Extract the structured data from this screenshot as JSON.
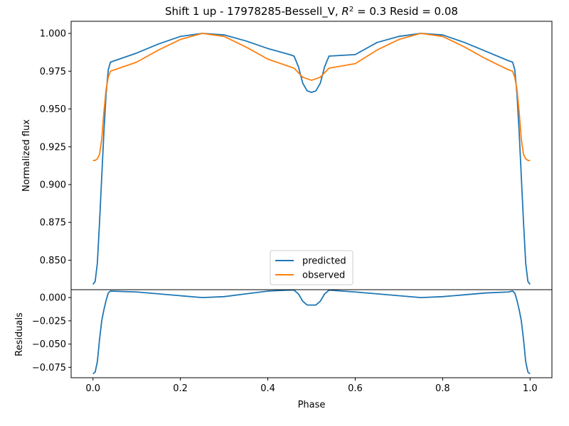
{
  "chart_data": [
    {
      "type": "line",
      "panel": "main",
      "title_prefix": "Shift 1 up - 17978285-Bessell_V, ",
      "title_r2_symbol": "R",
      "title_r2_exponent": "2",
      "title_suffix": " = 0.3 Resid = 0.08",
      "xlabel": "",
      "ylabel": "Normalized flux",
      "xlim": [
        -0.05,
        1.05
      ],
      "ylim": [
        0.8305,
        1.008
      ],
      "yticks": [
        "0.850",
        "0.875",
        "0.900",
        "0.925",
        "0.950",
        "0.975",
        "1.000"
      ],
      "legend_position": "lower center",
      "colors": {
        "predicted": "#1f77b4",
        "observed": "#ff7f0e"
      },
      "series": [
        {
          "name": "predicted",
          "x": [
            0.0,
            0.005,
            0.01,
            0.015,
            0.02,
            0.025,
            0.03,
            0.035,
            0.04,
            0.1,
            0.15,
            0.2,
            0.25,
            0.3,
            0.35,
            0.4,
            0.45,
            0.46,
            0.47,
            0.48,
            0.49,
            0.5,
            0.51,
            0.52,
            0.53,
            0.54,
            0.6,
            0.65,
            0.7,
            0.75,
            0.8,
            0.85,
            0.9,
            0.95,
            0.96,
            0.965,
            0.97,
            0.975,
            0.98,
            0.985,
            0.99,
            0.995,
            1.0
          ],
          "y": [
            0.834,
            0.836,
            0.848,
            0.875,
            0.905,
            0.935,
            0.96,
            0.976,
            0.981,
            0.987,
            0.993,
            0.998,
            1.0,
            0.999,
            0.995,
            0.99,
            0.986,
            0.985,
            0.978,
            0.967,
            0.962,
            0.961,
            0.962,
            0.967,
            0.978,
            0.985,
            0.986,
            0.994,
            0.998,
            1.0,
            0.999,
            0.994,
            0.988,
            0.982,
            0.981,
            0.976,
            0.96,
            0.935,
            0.905,
            0.875,
            0.848,
            0.836,
            0.834
          ]
        },
        {
          "name": "observed",
          "x": [
            0.0,
            0.005,
            0.01,
            0.015,
            0.02,
            0.025,
            0.03,
            0.035,
            0.04,
            0.1,
            0.15,
            0.2,
            0.25,
            0.3,
            0.35,
            0.4,
            0.45,
            0.46,
            0.47,
            0.48,
            0.49,
            0.5,
            0.51,
            0.52,
            0.53,
            0.54,
            0.6,
            0.65,
            0.7,
            0.75,
            0.8,
            0.85,
            0.9,
            0.95,
            0.96,
            0.965,
            0.97,
            0.975,
            0.98,
            0.985,
            0.99,
            0.995,
            1.0
          ],
          "y": [
            0.916,
            0.916,
            0.917,
            0.92,
            0.93,
            0.948,
            0.963,
            0.971,
            0.975,
            0.981,
            0.989,
            0.996,
            1.0,
            0.998,
            0.991,
            0.983,
            0.978,
            0.977,
            0.974,
            0.971,
            0.97,
            0.969,
            0.97,
            0.971,
            0.974,
            0.977,
            0.98,
            0.989,
            0.996,
            1.0,
            0.998,
            0.991,
            0.983,
            0.976,
            0.975,
            0.971,
            0.963,
            0.948,
            0.93,
            0.92,
            0.917,
            0.916,
            0.916
          ]
        }
      ]
    },
    {
      "type": "line",
      "panel": "residuals",
      "xlabel": "Phase",
      "ylabel": "Residuals",
      "xlim": [
        -0.05,
        1.05
      ],
      "ylim": [
        -0.0862,
        0.0085
      ],
      "xticks": [
        "0.0",
        "0.2",
        "0.4",
        "0.6",
        "0.8",
        "1.0"
      ],
      "yticks": [
        "-0.075",
        "-0.050",
        "-0.025",
        "0.000"
      ],
      "series": [
        {
          "name": "",
          "x": [
            0.0,
            0.005,
            0.01,
            0.015,
            0.02,
            0.025,
            0.03,
            0.035,
            0.04,
            0.1,
            0.15,
            0.2,
            0.25,
            0.3,
            0.35,
            0.4,
            0.45,
            0.46,
            0.47,
            0.48,
            0.49,
            0.5,
            0.51,
            0.52,
            0.53,
            0.54,
            0.6,
            0.65,
            0.7,
            0.75,
            0.8,
            0.85,
            0.9,
            0.95,
            0.96,
            0.965,
            0.97,
            0.975,
            0.98,
            0.985,
            0.99,
            0.995,
            1.0
          ],
          "y": [
            -0.082,
            -0.08,
            -0.069,
            -0.045,
            -0.025,
            -0.013,
            -0.003,
            0.005,
            0.007,
            0.006,
            0.004,
            0.002,
            0.0,
            0.001,
            0.004,
            0.007,
            0.008,
            0.008,
            0.004,
            -0.004,
            -0.008,
            -0.008,
            -0.008,
            -0.004,
            0.004,
            0.008,
            0.006,
            0.004,
            0.002,
            0.0,
            0.001,
            0.003,
            0.005,
            0.006,
            0.007,
            0.005,
            -0.003,
            -0.013,
            -0.025,
            -0.045,
            -0.069,
            -0.08,
            -0.082
          ]
        }
      ]
    }
  ]
}
